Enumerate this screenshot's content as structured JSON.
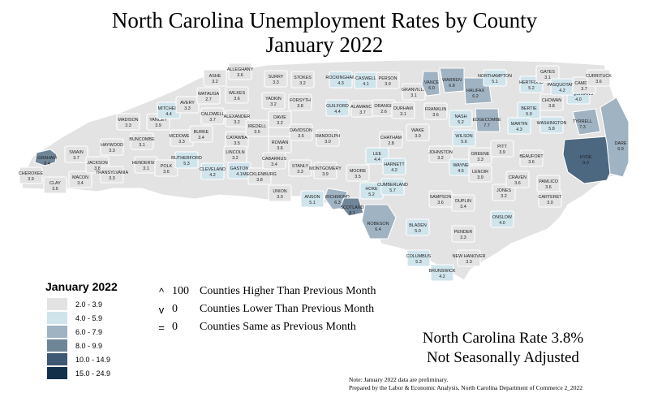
{
  "title": {
    "line1": "North Carolina Unemployment Rates by County",
    "line2": "January 2022"
  },
  "colors": {
    "bins": [
      "#e3e3e3",
      "#d0e4ec",
      "#a0b3c2",
      "#6f8699",
      "#3f5873",
      "#13304b"
    ],
    "hyde": "#4c6780"
  },
  "legend": {
    "title": "January 2022",
    "items": [
      {
        "label": "2.0 - 3.9",
        "color": "#e3e3e3"
      },
      {
        "label": "4.0 - 5.9",
        "color": "#d0e4ec"
      },
      {
        "label": "6.0 - 7.9",
        "color": "#a0b3c2"
      },
      {
        "label": "8.0 - 9.9",
        "color": "#6f8699"
      },
      {
        "label": "10.0 - 14.9",
        "color": "#3f5873"
      },
      {
        "label": "15.0 - 24.9",
        "color": "#13304b"
      }
    ]
  },
  "changes": [
    {
      "symbol": "^",
      "count": "100",
      "text": "Counties Higher Than Previous Month"
    },
    {
      "symbol": "v",
      "count": "0",
      "text": "Counties Lower Than Previous Month"
    },
    {
      "symbol": "=",
      "count": "0",
      "text": "Counties Same as Previous Month"
    }
  ],
  "state_rate": {
    "line1": "North Carolina Rate 3.8%",
    "line2": "Not Seasonally Adjusted"
  },
  "footnote": {
    "line1": "Note: January 2022 data are preliminary.",
    "line2": "Prepared by the Labor & Economic Analysis, North Carolina Department of Commerce 2_2022"
  },
  "counties": [
    {
      "name": "CHEROKEE",
      "value": "3.9",
      "bin": 0
    },
    {
      "name": "CLAY",
      "value": "3.6",
      "bin": 0
    },
    {
      "name": "GRAHAM",
      "value": "8.4",
      "bin": 3
    },
    {
      "name": "MACON",
      "value": "3.4",
      "bin": 0
    },
    {
      "name": "SWAIN",
      "value": "3.7",
      "bin": 0
    },
    {
      "name": "JACKSON",
      "value": "3.8",
      "bin": 0
    },
    {
      "name": "HAYWOOD",
      "value": "3.3",
      "bin": 0
    },
    {
      "name": "TRANSYLVANIA",
      "value": "3.3",
      "bin": 0
    },
    {
      "name": "MADISON",
      "value": "3.3",
      "bin": 0
    },
    {
      "name": "YANCEY",
      "value": "3.9",
      "bin": 0
    },
    {
      "name": "MITCHELL",
      "value": "4.4",
      "bin": 1
    },
    {
      "name": "AVERY",
      "value": "3.3",
      "bin": 0
    },
    {
      "name": "BUNCOMBE",
      "value": "3.1",
      "bin": 0
    },
    {
      "name": "HENDERSON",
      "value": "3.1",
      "bin": 0
    },
    {
      "name": "POLK",
      "value": "3.6",
      "bin": 0
    },
    {
      "name": "MCDOWELL",
      "value": "3.3",
      "bin": 0
    },
    {
      "name": "RUTHERFORD",
      "value": "5.3",
      "bin": 1
    },
    {
      "name": "BURKE",
      "value": "3.4",
      "bin": 0
    },
    {
      "name": "CALDWELL",
      "value": "3.7",
      "bin": 0
    },
    {
      "name": "WATAUGA",
      "value": "2.7",
      "bin": 0
    },
    {
      "name": "ASHE",
      "value": "3.2",
      "bin": 0
    },
    {
      "name": "ALLEGHANY",
      "value": "3.6",
      "bin": 0
    },
    {
      "name": "WILKES",
      "value": "3.6",
      "bin": 0
    },
    {
      "name": "ALEXANDER",
      "value": "3.2",
      "bin": 0
    },
    {
      "name": "CATAWBA",
      "value": "3.5",
      "bin": 0
    },
    {
      "name": "CLEVELAND",
      "value": "4.2",
      "bin": 1
    },
    {
      "name": "LINCOLN",
      "value": "3.2",
      "bin": 0
    },
    {
      "name": "GASTON",
      "value": "4.1",
      "bin": 1
    },
    {
      "name": "SURRY",
      "value": "3.3",
      "bin": 0
    },
    {
      "name": "YADKIN",
      "value": "3.2",
      "bin": 0
    },
    {
      "name": "IREDELL",
      "value": "3.5",
      "bin": 0
    },
    {
      "name": "MECKLENBURG",
      "value": "3.8",
      "bin": 0
    },
    {
      "name": "STOKES",
      "value": "3.2",
      "bin": 0
    },
    {
      "name": "FORSYTH",
      "value": "3.8",
      "bin": 0
    },
    {
      "name": "DAVIE",
      "value": "3.2",
      "bin": 0
    },
    {
      "name": "ROWAN",
      "value": "3.6",
      "bin": 0
    },
    {
      "name": "CABARRUS",
      "value": "3.4",
      "bin": 0
    },
    {
      "name": "UNION",
      "value": "3.0",
      "bin": 0
    },
    {
      "name": "STANLY",
      "value": "3.3",
      "bin": 0
    },
    {
      "name": "DAVIDSON",
      "value": "3.5",
      "bin": 0
    },
    {
      "name": "ROCKINGHAM",
      "value": "4.3",
      "bin": 1
    },
    {
      "name": "GUILFORD",
      "value": "4.4",
      "bin": 1
    },
    {
      "name": "RANDOLPH",
      "value": "3.0",
      "bin": 0
    },
    {
      "name": "MONTGOMERY",
      "value": "3.9",
      "bin": 0
    },
    {
      "name": "ANSON",
      "value": "5.1",
      "bin": 1
    },
    {
      "name": "RICHMOND",
      "value": "6.3",
      "bin": 2
    },
    {
      "name": "SCOTLAND",
      "value": "8.1",
      "bin": 3
    },
    {
      "name": "MOORE",
      "value": "3.5",
      "bin": 0
    },
    {
      "name": "CASWELL",
      "value": "4.1",
      "bin": 1
    },
    {
      "name": "ALAMANCE",
      "value": "3.7",
      "bin": 0
    },
    {
      "name": "PERSON",
      "value": "3.9",
      "bin": 0
    },
    {
      "name": "ORANGE",
      "value": "2.6",
      "bin": 0
    },
    {
      "name": "DURHAM",
      "value": "3.1",
      "bin": 0
    },
    {
      "name": "CHATHAM",
      "value": "2.8",
      "bin": 0
    },
    {
      "name": "LEE",
      "value": "4.4",
      "bin": 1
    },
    {
      "name": "HOKE",
      "value": "5.2",
      "bin": 1
    },
    {
      "name": "HARNETT",
      "value": "4.2",
      "bin": 1
    },
    {
      "name": "ROBESON",
      "value": "6.4",
      "bin": 2
    },
    {
      "name": "CUMBERLAND",
      "value": "5.7",
      "bin": 1
    },
    {
      "name": "GRANVILLE",
      "value": "3.1",
      "bin": 0
    },
    {
      "name": "VANCE",
      "value": "6.0",
      "bin": 2
    },
    {
      "name": "WARREN",
      "value": "6.8",
      "bin": 2
    },
    {
      "name": "FRANKLIN",
      "value": "3.6",
      "bin": 0
    },
    {
      "name": "WAKE",
      "value": "3.0",
      "bin": 0
    },
    {
      "name": "JOHNSTON",
      "value": "3.2",
      "bin": 0
    },
    {
      "name": "SAMPSON",
      "value": "3.6",
      "bin": 0
    },
    {
      "name": "BLADEN",
      "value": "5.0",
      "bin": 1
    },
    {
      "name": "COLUMBUS",
      "value": "5.3",
      "bin": 1
    },
    {
      "name": "BRUNSWICK",
      "value": "4.2",
      "bin": 1
    },
    {
      "name": "NEW HANOVER",
      "value": "3.3",
      "bin": 0
    },
    {
      "name": "PENDER",
      "value": "3.3",
      "bin": 0
    },
    {
      "name": "DUPLIN",
      "value": "3.4",
      "bin": 0
    },
    {
      "name": "ONSLOW",
      "value": "4.0",
      "bin": 1
    },
    {
      "name": "WAYNE",
      "value": "4.5",
      "bin": 1
    },
    {
      "name": "WILSON",
      "value": "5.6",
      "bin": 1
    },
    {
      "name": "NASH",
      "value": "5.2",
      "bin": 1
    },
    {
      "name": "EDGECOMBE",
      "value": "7.7",
      "bin": 2
    },
    {
      "name": "HALIFAX",
      "value": "6.2",
      "bin": 2
    },
    {
      "name": "NORTHAMPTON",
      "value": "5.1",
      "bin": 1
    },
    {
      "name": "HERTFORD",
      "value": "5.2",
      "bin": 1
    },
    {
      "name": "GATES",
      "value": "3.1",
      "bin": 0
    },
    {
      "name": "BERTIE",
      "value": "5.0",
      "bin": 1
    },
    {
      "name": "MARTIN",
      "value": "4.3",
      "bin": 1
    },
    {
      "name": "GREENE",
      "value": "3.3",
      "bin": 0
    },
    {
      "name": "PITT",
      "value": "3.9",
      "bin": 0
    },
    {
      "name": "LENOIR",
      "value": "3.9",
      "bin": 0
    },
    {
      "name": "JONES",
      "value": "3.2",
      "bin": 0
    },
    {
      "name": "CRAVEN",
      "value": "3.6",
      "bin": 0
    },
    {
      "name": "CARTERET",
      "value": "3.0",
      "bin": 0
    },
    {
      "name": "PAMLICO",
      "value": "3.6",
      "bin": 0
    },
    {
      "name": "BEAUFORT",
      "value": "3.6",
      "bin": 0
    },
    {
      "name": "HYDE",
      "value": "9.0",
      "bin": 3
    },
    {
      "name": "WASHINGTON",
      "value": "5.8",
      "bin": 1
    },
    {
      "name": "TYRRELL",
      "value": "7.3",
      "bin": 2
    },
    {
      "name": "DARE",
      "value": "6.9",
      "bin": 2
    },
    {
      "name": "CHOWAN",
      "value": "3.8",
      "bin": 0
    },
    {
      "name": "PERQUIMANS",
      "value": "4.0",
      "bin": 1
    },
    {
      "name": "PASQUOTANK",
      "value": "4.2",
      "bin": 1
    },
    {
      "name": "CAMDEN",
      "value": "3.7",
      "bin": 0
    },
    {
      "name": "CURRITUCK",
      "value": "3.6",
      "bin": 0
    }
  ]
}
